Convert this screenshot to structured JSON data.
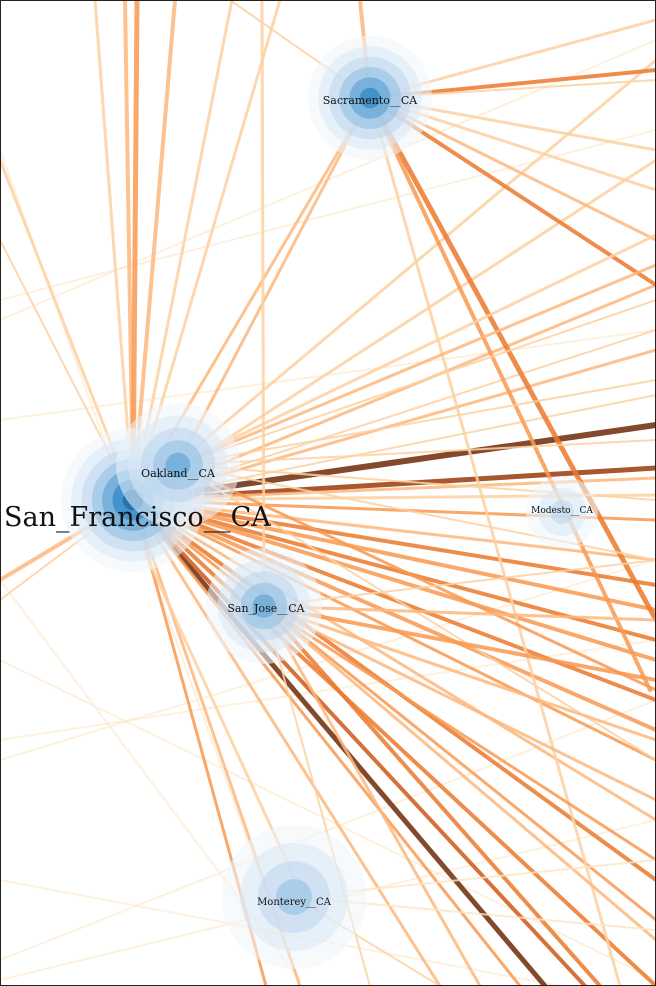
{
  "map": {
    "nodes": [
      {
        "id": "san_francisco",
        "label": "San_Francisco__CA",
        "weight": 5
      },
      {
        "id": "oakland",
        "label": "Oakland__CA",
        "weight": 3
      },
      {
        "id": "sacramento",
        "label": "Sacramento__CA",
        "weight": 4
      },
      {
        "id": "san_jose",
        "label": "San_Jose__CA",
        "weight": 3
      },
      {
        "id": "modesto",
        "label": "Modesto__CA",
        "weight": 1
      },
      {
        "id": "monterey",
        "label": "Monterey__CA",
        "weight": 2
      }
    ],
    "colors": {
      "halo": [
        "#eef5fb",
        "#d9e8f5",
        "#bcd6ee",
        "#8cbde2",
        "#4e9ccf",
        "#1b78bd",
        "#08599b"
      ],
      "edges": [
        "#fde6c4",
        "#fdd2a2",
        "#fdb87d",
        "#f99950",
        "#ec7a2c",
        "#cf5a17",
        "#9a3a0a",
        "#6e2a08"
      ]
    }
  }
}
